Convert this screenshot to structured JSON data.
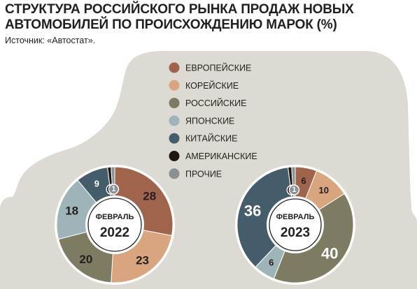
{
  "title": "СТРУКТУРА РОССИЙСКОГО РЫНКА ПРОДАЖ НОВЫХ АВТОМОБИЛЕЙ ПО ПРОИСХОЖДЕНИЮ МАРОК (%)",
  "source": "Источник: «Автостат».",
  "colors": {
    "background_car": "#dcdad3",
    "europe": "#a0644d",
    "korea": "#d9a57e",
    "russia": "#7d7b62",
    "japan": "#9fb4b8",
    "china": "#455d6b",
    "usa": "#1e1610",
    "other": "#8b9193"
  },
  "chart_data": [
    {
      "type": "pie",
      "title": "ФЕВРАЛЬ 2022",
      "center_month": "ФЕВРАЛЬ",
      "center_year": "2022",
      "categories": [
        "ЕВРОПЕЙСКИЕ",
        "КОРЕЙСКИЕ",
        "РОССИЙСКИЕ",
        "ЯПОНСКИЕ",
        "КИТАЙСКИЕ",
        "АМЕРИКАНСКИЕ",
        "ПРОЧИЕ"
      ],
      "values": [
        28,
        23,
        20,
        18,
        9,
        1,
        1
      ],
      "labels": [
        "28",
        "23",
        "20",
        "18",
        "9",
        "1",
        "1"
      ]
    },
    {
      "type": "pie",
      "title": "ФЕВРАЛЬ 2023",
      "center_month": "ФЕВРАЛЬ",
      "center_year": "2023",
      "categories": [
        "ЕВРОПЕЙСКИЕ",
        "КОРЕЙСКИЕ",
        "РОССИЙСКИЕ",
        "ЯПОНСКИЕ",
        "КИТАЙСКИЕ",
        "АМЕРИКАНСКИЕ",
        "ПРОЧИЕ"
      ],
      "values": [
        6,
        10,
        40,
        6,
        36,
        1,
        1
      ],
      "labels": [
        "6",
        "10",
        "40",
        "6",
        "36",
        "1",
        "1"
      ]
    }
  ],
  "legend": [
    {
      "label": "ЕВРОПЕЙСКИЕ",
      "color_key": "europe"
    },
    {
      "label": "КОРЕЙСКИЕ",
      "color_key": "korea"
    },
    {
      "label": "РОССИЙСКИЕ",
      "color_key": "russia"
    },
    {
      "label": "ЯПОНСКИЕ",
      "color_key": "japan"
    },
    {
      "label": "КИТАЙСКИЕ",
      "color_key": "china"
    },
    {
      "label": "АМЕРИКАНСКИЕ",
      "color_key": "usa"
    },
    {
      "label": "ПРОЧИЕ",
      "color_key": "other"
    }
  ]
}
